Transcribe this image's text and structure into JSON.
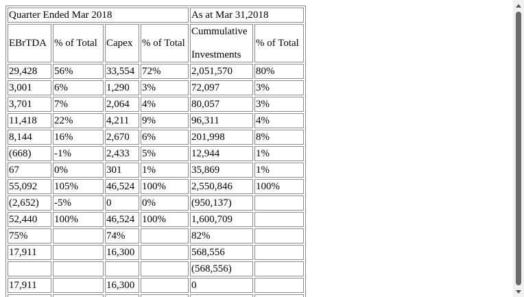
{
  "header": {
    "group_quarter": "Quarter Ended Mar 2018",
    "group_asat": "As at Mar 31,2018",
    "columns": [
      "EBrTDA",
      "% of Total",
      "Capex",
      "% of Total",
      "Cummulative Investments",
      "% of Total"
    ],
    "col5_line1": "Cummulative",
    "col5_line2": "Investments"
  },
  "rows": [
    [
      "29,428",
      "56%",
      "33,554",
      "72%",
      "2,051,570",
      "80%"
    ],
    [
      "3,001",
      "6%",
      "1,290",
      "3%",
      "72,097",
      "3%"
    ],
    [
      "3,701",
      "7%",
      "2,064",
      "4%",
      "80,057",
      "3%"
    ],
    [
      "11,418",
      "22%",
      "4,211",
      "9%",
      "96,311",
      "4%"
    ],
    [
      "8,144",
      "16%",
      "2,670",
      "6%",
      "201,998",
      "8%"
    ],
    [
      "(668)",
      "-1%",
      "2,433",
      "5%",
      "12,944",
      "1%"
    ],
    [
      "67",
      "0%",
      "301",
      "1%",
      "35,869",
      "1%"
    ],
    [
      "55,092",
      "105%",
      "46,524",
      "100%",
      "2,550,846",
      "100%"
    ],
    [
      "(2,652)",
      "-5%",
      "0",
      "0%",
      "(950,137)",
      ""
    ],
    [
      "52,440",
      "100%",
      "46,524",
      "100%",
      "1,600,709",
      ""
    ],
    [
      "75%",
      "",
      "74%",
      "",
      "82%",
      ""
    ],
    [
      "17,911",
      "",
      "16,300",
      "",
      "568,556",
      ""
    ],
    [
      "",
      "",
      "",
      "",
      "(568,556)",
      ""
    ],
    [
      "17,911",
      "",
      "16,300",
      "",
      "0",
      ""
    ],
    [
      "",
      "",
      "",
      "",
      "",
      ""
    ]
  ]
}
